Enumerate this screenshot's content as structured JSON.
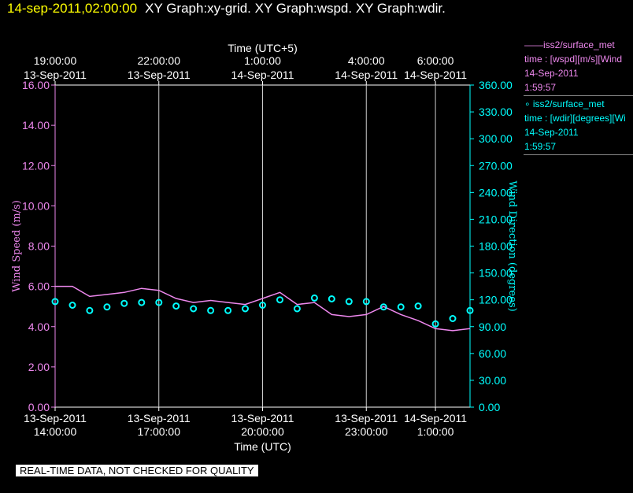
{
  "header": {
    "timestamp": "14-sep-2011,02:00:00",
    "title": "XY Graph:xy-grid.  XY Graph:wspd.  XY Graph:wdir."
  },
  "legend": {
    "entries": [
      {
        "line1": "——iss2/surface_met",
        "line2": "time : [wspd][m/s][Wind",
        "line3": "14-Sep-2011",
        "line4": "1:59:57",
        "color": "#ee88ee"
      },
      {
        "line1": "∘ iss2/surface_met",
        "line2": "time : [wdir][degrees][Wi",
        "line3": "14-Sep-2011",
        "line4": "1:59:57",
        "color": "#00ffff"
      }
    ]
  },
  "notice": "REAL-TIME DATA, NOT CHECKED FOR QUALITY",
  "chart_data": {
    "type": "line",
    "xlabel_bottom": "Time (UTC)",
    "xlabel_top": "Time (UTC+5)",
    "ylabel_left": "Wind Speed (m/s)",
    "ylabel_right": "Wind Direction (degrees)",
    "x_range": [
      "13-Sep-2011 14:00:00",
      "14-Sep-2011 02:00:00"
    ],
    "ylim_left": [
      0,
      16
    ],
    "ylim_right": [
      0,
      360
    ],
    "yticks_left": [
      "0.00",
      "2.00",
      "4.00",
      "6.00",
      "8.00",
      "10.00",
      "12.00",
      "14.00",
      "16.00"
    ],
    "yticks_right": [
      "0.00",
      "30.00",
      "60.00",
      "90.00",
      "120.00",
      "150.00",
      "180.00",
      "210.00",
      "240.00",
      "270.00",
      "300.00",
      "330.00",
      "360.00"
    ],
    "xticks_bottom": [
      {
        "time": "13-Sep-2011 14:00:00",
        "line1": "13-Sep-2011",
        "line2": "14:00:00"
      },
      {
        "time": "13-Sep-2011 17:00:00",
        "line1": "13-Sep-2011",
        "line2": "17:00:00"
      },
      {
        "time": "13-Sep-2011 20:00:00",
        "line1": "13-Sep-2011",
        "line2": "20:00:00"
      },
      {
        "time": "13-Sep-2011 23:00:00",
        "line1": "13-Sep-2011",
        "line2": "23:00:00"
      },
      {
        "time": "14-Sep-2011 01:00:00",
        "line1": "14-Sep-2011",
        "line2": "1:00:00"
      }
    ],
    "xticks_top": [
      {
        "time": "13-Sep-2011 14:00:00",
        "line1": "19:00:00",
        "line2": "13-Sep-2011"
      },
      {
        "time": "13-Sep-2011 17:00:00",
        "line1": "22:00:00",
        "line2": "13-Sep-2011"
      },
      {
        "time": "13-Sep-2011 20:00:00",
        "line1": "1:00:00",
        "line2": "14-Sep-2011"
      },
      {
        "time": "13-Sep-2011 23:00:00",
        "line1": "4:00:00",
        "line2": "14-Sep-2011"
      },
      {
        "time": "14-Sep-2011 01:00:00",
        "line1": "6:00:00",
        "line2": "14-Sep-2011"
      }
    ],
    "gridlines_x": [
      "13-Sep-2011 17:00:00",
      "13-Sep-2011 20:00:00",
      "13-Sep-2011 23:00:00",
      "14-Sep-2011 01:00:00"
    ],
    "series": [
      {
        "name": "iss2/surface_met time : [wspd][m/s]",
        "axis": "left",
        "style": "line",
        "color": "#ee88ee",
        "x": [
          "13-Sep-2011 14:00:00",
          "13-Sep-2011 14:30:00",
          "13-Sep-2011 15:00:00",
          "13-Sep-2011 15:30:00",
          "13-Sep-2011 16:00:00",
          "13-Sep-2011 16:30:00",
          "13-Sep-2011 17:00:00",
          "13-Sep-2011 17:30:00",
          "13-Sep-2011 18:00:00",
          "13-Sep-2011 18:30:00",
          "13-Sep-2011 19:00:00",
          "13-Sep-2011 19:30:00",
          "13-Sep-2011 20:00:00",
          "13-Sep-2011 20:30:00",
          "13-Sep-2011 21:00:00",
          "13-Sep-2011 21:30:00",
          "13-Sep-2011 22:00:00",
          "13-Sep-2011 22:30:00",
          "13-Sep-2011 23:00:00",
          "13-Sep-2011 23:30:00",
          "14-Sep-2011 00:00:00",
          "14-Sep-2011 00:30:00",
          "14-Sep-2011 01:00:00",
          "14-Sep-2011 01:30:00",
          "14-Sep-2011 02:00:00"
        ],
        "values": [
          6.0,
          6.0,
          5.5,
          5.6,
          5.7,
          5.9,
          5.8,
          5.4,
          5.2,
          5.3,
          5.2,
          5.1,
          5.4,
          5.7,
          5.1,
          5.2,
          4.6,
          4.5,
          4.6,
          5.0,
          4.6,
          4.3,
          3.9,
          3.8,
          3.9
        ]
      },
      {
        "name": "iss2/surface_met time : [wdir][degrees]",
        "axis": "right",
        "style": "markers",
        "color": "#00ffff",
        "x": [
          "13-Sep-2011 14:00:00",
          "13-Sep-2011 14:30:00",
          "13-Sep-2011 15:00:00",
          "13-Sep-2011 15:30:00",
          "13-Sep-2011 16:00:00",
          "13-Sep-2011 16:30:00",
          "13-Sep-2011 17:00:00",
          "13-Sep-2011 17:30:00",
          "13-Sep-2011 18:00:00",
          "13-Sep-2011 18:30:00",
          "13-Sep-2011 19:00:00",
          "13-Sep-2011 19:30:00",
          "13-Sep-2011 20:00:00",
          "13-Sep-2011 20:30:00",
          "13-Sep-2011 21:00:00",
          "13-Sep-2011 21:30:00",
          "13-Sep-2011 22:00:00",
          "13-Sep-2011 22:30:00",
          "13-Sep-2011 23:00:00",
          "13-Sep-2011 23:30:00",
          "14-Sep-2011 00:00:00",
          "14-Sep-2011 00:30:00",
          "14-Sep-2011 01:00:00",
          "14-Sep-2011 01:30:00",
          "14-Sep-2011 02:00:00"
        ],
        "values": [
          118,
          114,
          108,
          112,
          116,
          117,
          117,
          113,
          110,
          108,
          108,
          110,
          114,
          120,
          110,
          122,
          121,
          118,
          118,
          112,
          112,
          113,
          93,
          99,
          108
        ]
      }
    ]
  }
}
